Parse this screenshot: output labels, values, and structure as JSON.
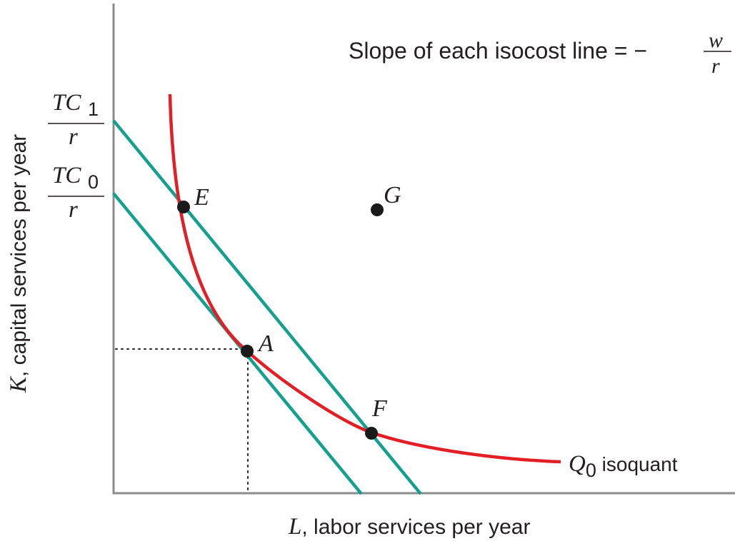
{
  "slope_note": {
    "text": "Slope of each isocost line = −",
    "numerator": "w",
    "denominator": "r"
  },
  "y_axis": {
    "var": "K",
    "label": ", capital services per year"
  },
  "x_axis": {
    "var": "L",
    "label": ", labor services per year"
  },
  "intercepts": [
    {
      "num_main": "TC",
      "num_sub": "1",
      "den": "r"
    },
    {
      "num_main": "TC",
      "num_sub": "0",
      "den": "r"
    }
  ],
  "points": {
    "E": "E",
    "A": "A",
    "F": "F",
    "G": "G"
  },
  "isoquant": {
    "name_main": "Q",
    "name_sub": "0",
    "label": " isoquant"
  },
  "colors": {
    "isocost": "#13a08f",
    "isoquant": "#e31e24",
    "axis": "#8c8c8c",
    "text": "#231f20"
  }
}
